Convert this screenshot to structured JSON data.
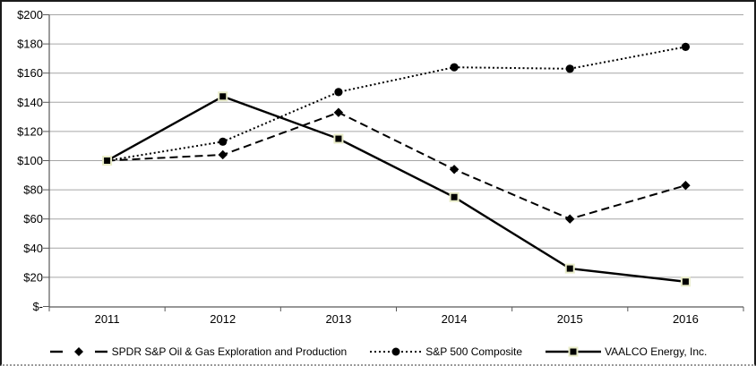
{
  "chart_data": {
    "type": "line",
    "title": "",
    "xlabel": "",
    "ylabel": "",
    "x_categories": [
      "2011",
      "2012",
      "2013",
      "2014",
      "2015",
      "2016"
    ],
    "y_axis": {
      "min": 0,
      "max": 200,
      "step": 20,
      "tick_labels": [
        "$-",
        "$20",
        "$40",
        "$60",
        "$80",
        "$100",
        "$120",
        "$140",
        "$160",
        "$180",
        "$200"
      ]
    },
    "grid": true,
    "legend_position": "bottom",
    "series": [
      {
        "name": "SPDR S&P Oil & Gas Exploration and Production",
        "marker": "diamond",
        "line_style": "dashed",
        "color": "#000000",
        "values": [
          100,
          104,
          133,
          94,
          60,
          83
        ]
      },
      {
        "name": "S&P 500 Composite",
        "marker": "circle",
        "line_style": "dotted",
        "color": "#000000",
        "values": [
          100,
          113,
          147,
          164,
          163,
          178
        ]
      },
      {
        "name": "VAALCO Energy, Inc.",
        "marker": "square",
        "line_style": "solid",
        "color": "#000000",
        "marker_edge": "#e9ecc9",
        "values": [
          100,
          144,
          115,
          75,
          26,
          17
        ]
      }
    ],
    "colors": {
      "gridline": "#a6a6a6",
      "axis": "#595959",
      "text": "#000000",
      "border": "#1a1a1a",
      "background": "#ffffff"
    }
  }
}
